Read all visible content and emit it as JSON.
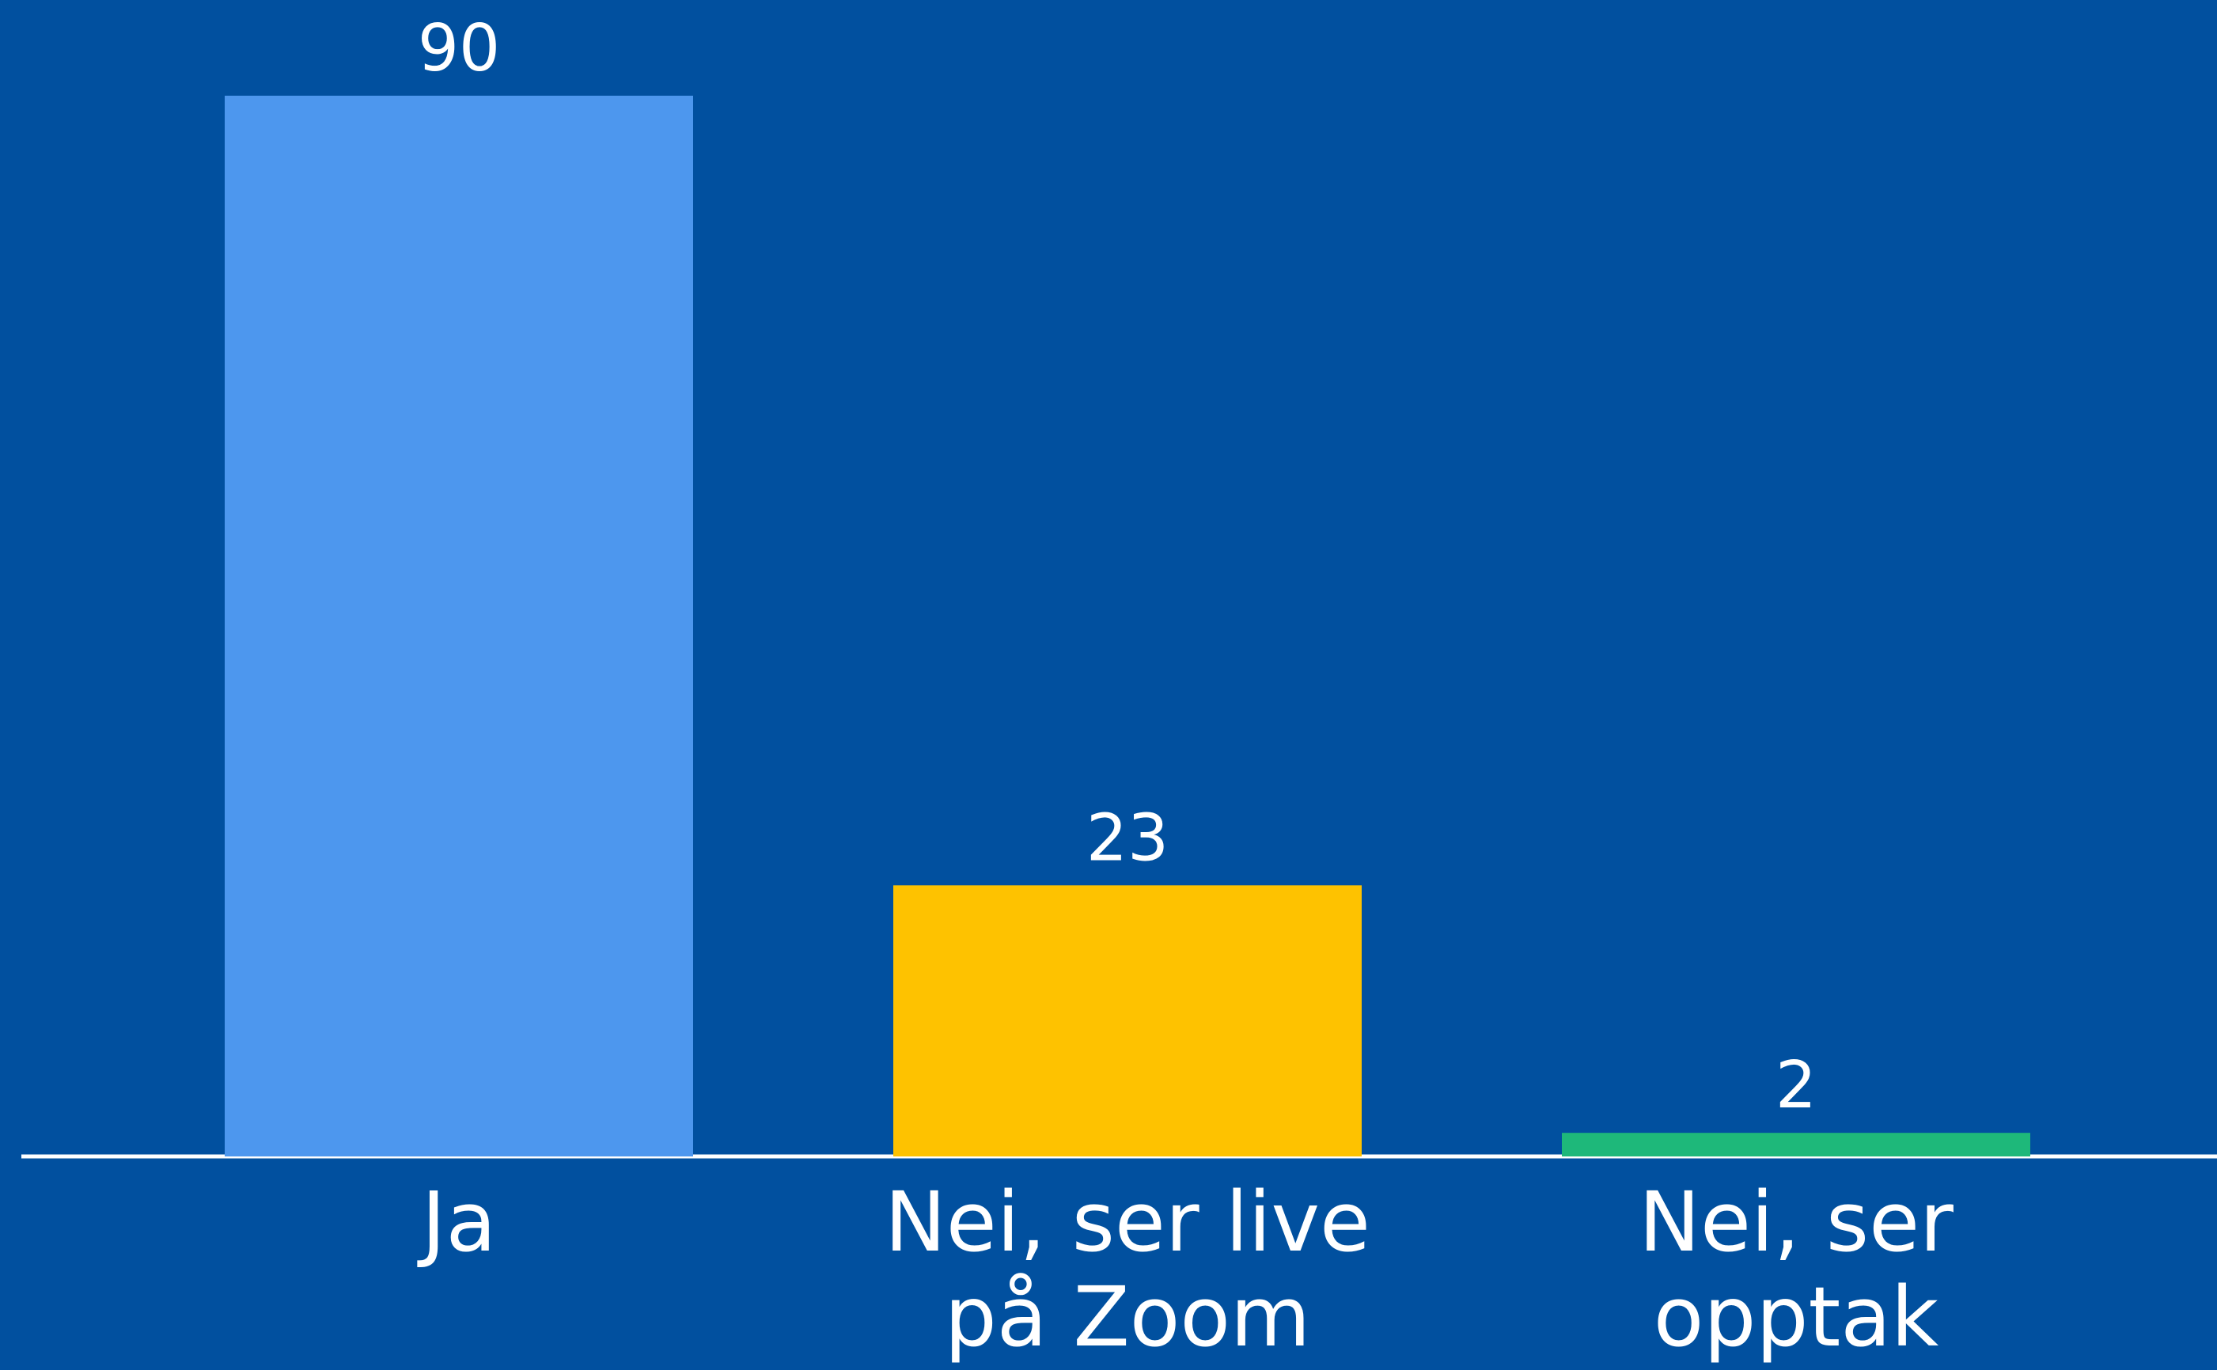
{
  "chart_data": {
    "type": "bar",
    "categories": [
      "Ja",
      "Nei, ser live på Zoom",
      "Nei, ser opptak"
    ],
    "values": [
      90,
      23,
      2
    ],
    "colors": [
      "#4d97ee",
      "#fec200",
      "#1eb87a"
    ]
  }
}
